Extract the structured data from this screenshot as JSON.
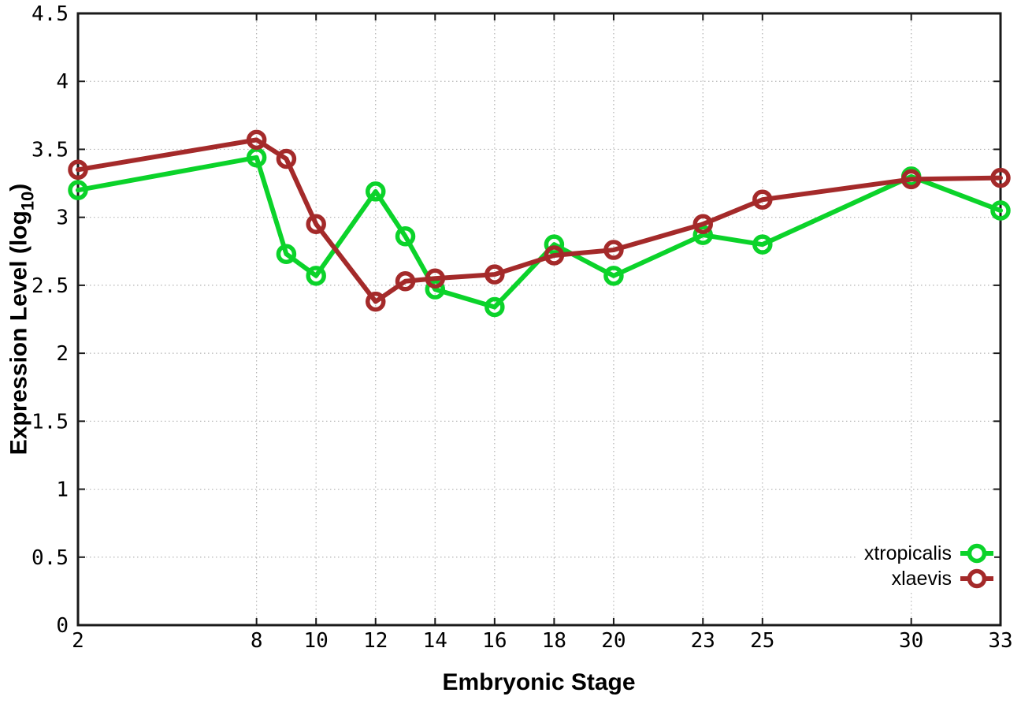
{
  "chart_data": {
    "type": "line",
    "title": "",
    "xlabel": "Embryonic Stage",
    "ylabel": "Expression Level (log10)",
    "ylabel_parts": {
      "pre": "Expression Level (log",
      "sub": "10",
      "post": ")"
    },
    "x": [
      2,
      8,
      9,
      10,
      12,
      13,
      14,
      16,
      18,
      20,
      23,
      25,
      30,
      33
    ],
    "series": [
      {
        "name": "xtropicalis",
        "color": "#0bd32a",
        "values": [
          3.2,
          3.44,
          2.73,
          2.57,
          3.19,
          2.86,
          2.47,
          2.34,
          2.8,
          2.57,
          2.87,
          2.8,
          3.3,
          3.05
        ]
      },
      {
        "name": "xlaevis",
        "color": "#a42a2a",
        "values": [
          3.35,
          3.57,
          3.43,
          2.95,
          2.38,
          2.53,
          2.55,
          2.58,
          2.72,
          2.76,
          2.95,
          3.13,
          3.28,
          3.29
        ]
      }
    ],
    "xticks": [
      2,
      8,
      10,
      12,
      14,
      16,
      18,
      20,
      23,
      25,
      30,
      33
    ],
    "yticks": [
      0,
      0.5,
      1,
      1.5,
      2,
      2.5,
      3,
      3.5,
      4,
      4.5
    ],
    "xlim": [
      2,
      33
    ],
    "ylim": [
      0,
      4.5
    ],
    "grid": true,
    "legend_position": "bottom-right",
    "marker": "open-circle",
    "colors": {
      "border": "#1a1a1a",
      "grid": "#b3b3b3",
      "tick_label": "#000000"
    }
  }
}
